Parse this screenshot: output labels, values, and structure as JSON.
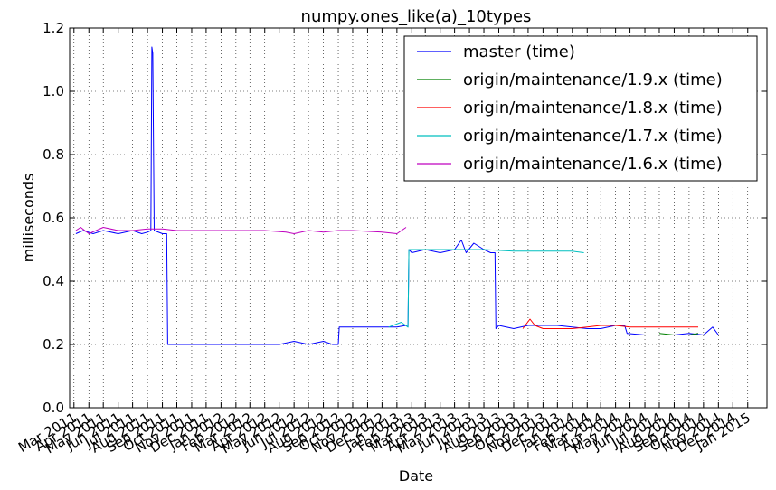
{
  "chart_data": {
    "type": "line",
    "title": "numpy.ones_like(a)_10types",
    "xlabel": "Date",
    "ylabel": "milliseconds",
    "ylim": [
      0.0,
      1.2
    ],
    "xlim": [
      "2011-02-20",
      "2015-02-10"
    ],
    "grid": true,
    "legend_position": "top-right",
    "ytick_labels": [
      "0.0",
      "0.2",
      "0.4",
      "0.6",
      "0.8",
      "1.0",
      "1.2"
    ],
    "xtick_labels": [
      "Mar 2011",
      "Apr 2011",
      "May 2011",
      "Jun 2011",
      "Jul 2011",
      "Aug 2011",
      "Sep 2011",
      "Oct 2011",
      "Nov 2011",
      "Dec 2011",
      "Jan 2012",
      "Feb 2012",
      "Mar 2012",
      "Apr 2012",
      "May 2012",
      "Jun 2012",
      "Jul 2012",
      "Aug 2012",
      "Sep 2012",
      "Oct 2012",
      "Nov 2012",
      "Dec 2012",
      "Jan 2013",
      "Feb 2013",
      "Mar 2013",
      "Apr 2013",
      "May 2013",
      "Jun 2013",
      "Jul 2013",
      "Aug 2013",
      "Sep 2013",
      "Oct 2013",
      "Nov 2013",
      "Dec 2013",
      "Jan 2014",
      "Feb 2014",
      "Mar 2014",
      "Apr 2014",
      "May 2014",
      "Jun 2014",
      "Jul 2014",
      "Aug 2014",
      "Sep 2014",
      "Oct 2014",
      "Nov 2014",
      "Dec 2014",
      "Jan 2015"
    ],
    "series": [
      {
        "name": "master (time)",
        "color": "#0000ff",
        "points": [
          [
            "2011-03-05",
            0.55
          ],
          [
            "2011-03-20",
            0.56
          ],
          [
            "2011-04-10",
            0.55
          ],
          [
            "2011-05-01",
            0.56
          ],
          [
            "2011-06-01",
            0.55
          ],
          [
            "2011-07-01",
            0.56
          ],
          [
            "2011-07-20",
            0.55
          ],
          [
            "2011-08-01",
            0.555
          ],
          [
            "2011-08-08",
            0.56
          ],
          [
            "2011-08-10",
            1.14
          ],
          [
            "2011-08-12",
            1.12
          ],
          [
            "2011-08-15",
            0.56
          ],
          [
            "2011-09-01",
            0.55
          ],
          [
            "2011-09-10",
            0.55
          ],
          [
            "2011-09-12",
            0.2
          ],
          [
            "2011-10-01",
            0.2
          ],
          [
            "2011-11-01",
            0.2
          ],
          [
            "2011-12-01",
            0.2
          ],
          [
            "2012-01-01",
            0.2
          ],
          [
            "2012-03-01",
            0.2
          ],
          [
            "2012-05-01",
            0.2
          ],
          [
            "2012-06-01",
            0.21
          ],
          [
            "2012-07-01",
            0.2
          ],
          [
            "2012-08-01",
            0.21
          ],
          [
            "2012-08-20",
            0.2
          ],
          [
            "2012-09-01",
            0.2
          ],
          [
            "2012-09-03",
            0.255
          ],
          [
            "2012-10-01",
            0.255
          ],
          [
            "2012-11-01",
            0.255
          ],
          [
            "2012-12-01",
            0.255
          ],
          [
            "2013-01-01",
            0.255
          ],
          [
            "2013-01-20",
            0.26
          ],
          [
            "2013-01-24",
            0.255
          ],
          [
            "2013-01-26",
            0.5
          ],
          [
            "2013-02-01",
            0.49
          ],
          [
            "2013-03-01",
            0.5
          ],
          [
            "2013-04-01",
            0.49
          ],
          [
            "2013-05-01",
            0.5
          ],
          [
            "2013-05-15",
            0.53
          ],
          [
            "2013-05-25",
            0.49
          ],
          [
            "2013-06-10",
            0.52
          ],
          [
            "2013-07-01",
            0.5
          ],
          [
            "2013-07-15",
            0.49
          ],
          [
            "2013-07-24",
            0.49
          ],
          [
            "2013-07-26",
            0.25
          ],
          [
            "2013-08-01",
            0.26
          ],
          [
            "2013-09-01",
            0.25
          ],
          [
            "2013-10-01",
            0.26
          ],
          [
            "2013-12-01",
            0.26
          ],
          [
            "2014-02-01",
            0.25
          ],
          [
            "2014-03-01",
            0.25
          ],
          [
            "2014-04-01",
            0.26
          ],
          [
            "2014-04-20",
            0.26
          ],
          [
            "2014-04-25",
            0.235
          ],
          [
            "2014-06-01",
            0.23
          ],
          [
            "2014-08-01",
            0.23
          ],
          [
            "2014-09-01",
            0.235
          ],
          [
            "2014-10-01",
            0.23
          ],
          [
            "2014-10-20",
            0.255
          ],
          [
            "2014-11-01",
            0.23
          ],
          [
            "2014-12-01",
            0.23
          ],
          [
            "2015-01-01",
            0.23
          ],
          [
            "2015-01-20",
            0.23
          ]
        ]
      },
      {
        "name": "origin/maintenance/1.9.x (time)",
        "color": "#008000",
        "points": [
          [
            "2014-07-01",
            0.235
          ],
          [
            "2014-08-01",
            0.23
          ],
          [
            "2014-09-01",
            0.23
          ],
          [
            "2014-09-20",
            0.235
          ]
        ]
      },
      {
        "name": "origin/maintenance/1.8.x (time)",
        "color": "#ff0000",
        "points": [
          [
            "2013-09-20",
            0.25
          ],
          [
            "2013-10-05",
            0.28
          ],
          [
            "2013-10-15",
            0.26
          ],
          [
            "2013-11-01",
            0.25
          ],
          [
            "2014-01-01",
            0.25
          ],
          [
            "2014-02-01",
            0.255
          ],
          [
            "2014-03-01",
            0.26
          ],
          [
            "2014-04-01",
            0.26
          ],
          [
            "2014-05-01",
            0.255
          ],
          [
            "2014-06-01",
            0.255
          ],
          [
            "2014-08-01",
            0.255
          ],
          [
            "2014-09-20",
            0.255
          ]
        ]
      },
      {
        "name": "origin/maintenance/1.7.x (time)",
        "color": "#00bfbf",
        "points": [
          [
            "2012-12-15",
            0.255
          ],
          [
            "2013-01-10",
            0.27
          ],
          [
            "2013-01-24",
            0.255
          ],
          [
            "2013-01-26",
            0.5
          ],
          [
            "2013-03-01",
            0.5
          ],
          [
            "2013-05-01",
            0.5
          ],
          [
            "2013-07-01",
            0.5
          ],
          [
            "2013-09-01",
            0.495
          ],
          [
            "2013-11-01",
            0.495
          ],
          [
            "2014-01-01",
            0.495
          ],
          [
            "2014-01-25",
            0.49
          ]
        ]
      },
      {
        "name": "origin/maintenance/1.6.x (time)",
        "color": "#bf00bf",
        "points": [
          [
            "2011-03-05",
            0.56
          ],
          [
            "2011-03-15",
            0.57
          ],
          [
            "2011-04-01",
            0.55
          ],
          [
            "2011-05-01",
            0.57
          ],
          [
            "2011-06-01",
            0.56
          ],
          [
            "2011-07-01",
            0.56
          ],
          [
            "2011-08-01",
            0.565
          ],
          [
            "2011-09-01",
            0.565
          ],
          [
            "2011-10-01",
            0.56
          ],
          [
            "2012-01-01",
            0.56
          ],
          [
            "2012-04-01",
            0.56
          ],
          [
            "2012-05-15",
            0.555
          ],
          [
            "2012-06-01",
            0.55
          ],
          [
            "2012-07-01",
            0.56
          ],
          [
            "2012-08-01",
            0.555
          ],
          [
            "2012-09-01",
            0.56
          ],
          [
            "2012-10-01",
            0.56
          ],
          [
            "2012-12-01",
            0.555
          ],
          [
            "2013-01-01",
            0.55
          ],
          [
            "2013-01-20",
            0.57
          ]
        ]
      }
    ]
  }
}
